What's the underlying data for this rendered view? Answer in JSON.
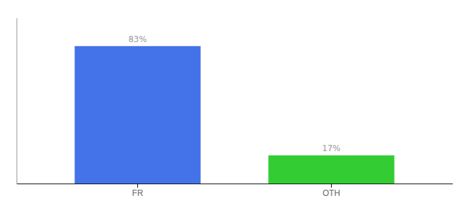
{
  "chart_data": {
    "type": "bar",
    "categories": [
      "FR",
      "OTH"
    ],
    "values": [
      83,
      17
    ],
    "value_labels": [
      "83%",
      "17%"
    ],
    "colors": [
      "#4472e8",
      "#33cc33"
    ],
    "ylim": [
      0,
      100
    ],
    "data_labels": true,
    "grid": false,
    "tick_labels": "x"
  }
}
